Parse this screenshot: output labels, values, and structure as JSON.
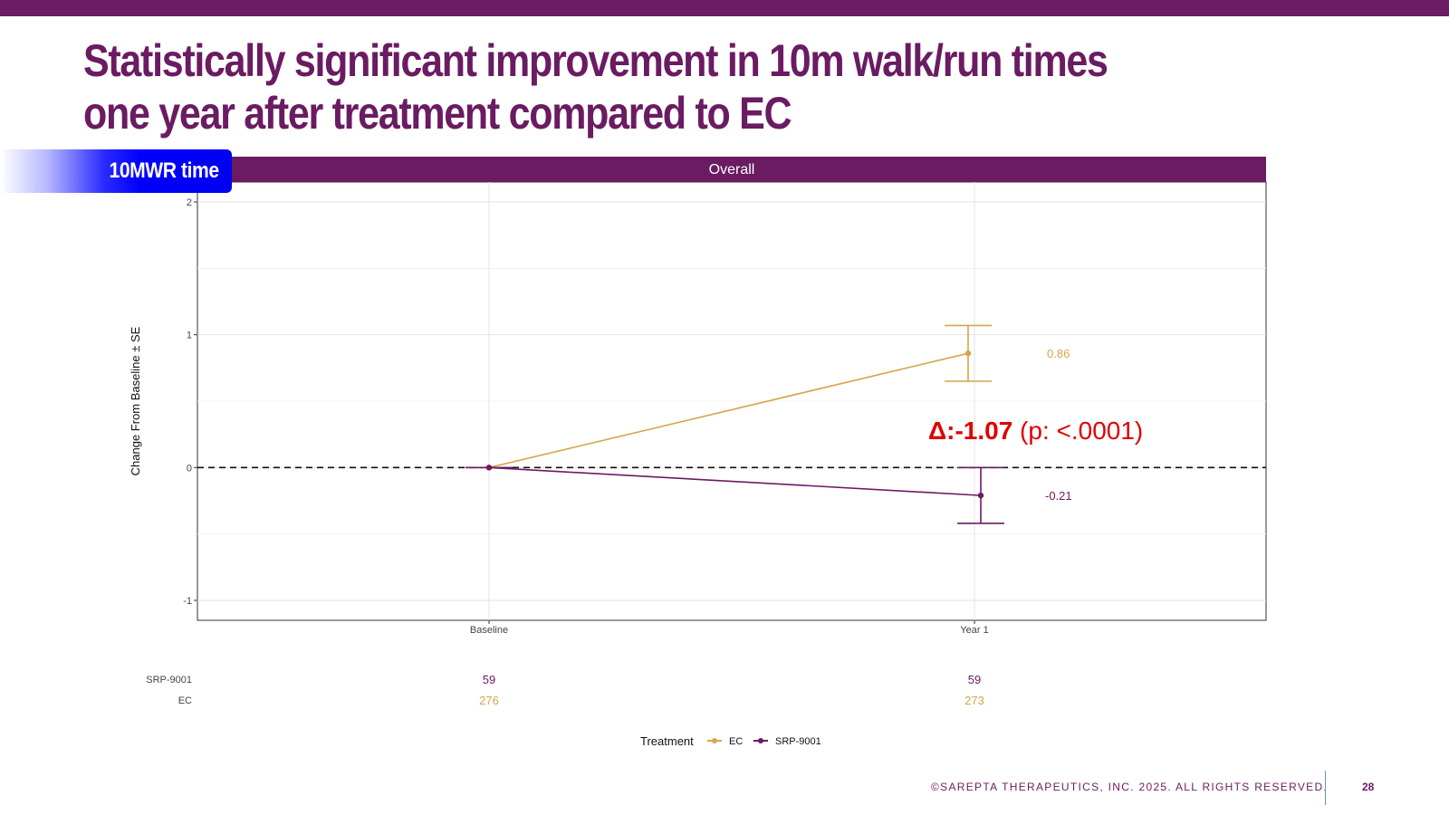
{
  "slide": {
    "title_line1": "Statistically significant improvement in 10m walk/run times",
    "title_line2": "one year after treatment compared to EC",
    "tag_label": "10MWR time",
    "footer": "©SAREPTA THERAPEUTICS, INC. 2025.  ALL RIGHTS RESERVED.",
    "page_number": "28"
  },
  "colors": {
    "brand": "#6a1b62",
    "ec": "#d4a64a",
    "srp": "#6a1b62",
    "annotation_red": "#e00000"
  },
  "chart_data": {
    "type": "line",
    "panel_title": "Overall",
    "ylabel": "Change From Baseline ± SE",
    "xlabel": "",
    "categories": [
      "Baseline",
      "Year 1"
    ],
    "ylim": [
      -1.15,
      2.15
    ],
    "yticks": [
      -1,
      0,
      1,
      2
    ],
    "reference_line": 0,
    "grid": true,
    "series": [
      {
        "name": "EC",
        "color": "#d4a64a",
        "values": [
          0,
          0.86
        ],
        "se": [
          0,
          0.21
        ],
        "value_labels": [
          "",
          "0.86"
        ],
        "n": [
          "276",
          "273"
        ]
      },
      {
        "name": "SRP-9001",
        "color": "#6a1b62",
        "values": [
          0,
          -0.21
        ],
        "se": [
          0,
          0.21
        ],
        "value_labels": [
          "",
          "-0.21"
        ],
        "n": [
          "59",
          "59"
        ]
      }
    ],
    "annotation": {
      "prefix": "Δ:",
      "value": "-1.07",
      "suffix": " (p: <.0001)"
    },
    "n_table_rows": [
      "SRP-9001",
      "EC"
    ],
    "legend": {
      "title": "Treatment",
      "placement": "bottom",
      "entries": [
        "EC",
        "SRP-9001"
      ]
    }
  }
}
